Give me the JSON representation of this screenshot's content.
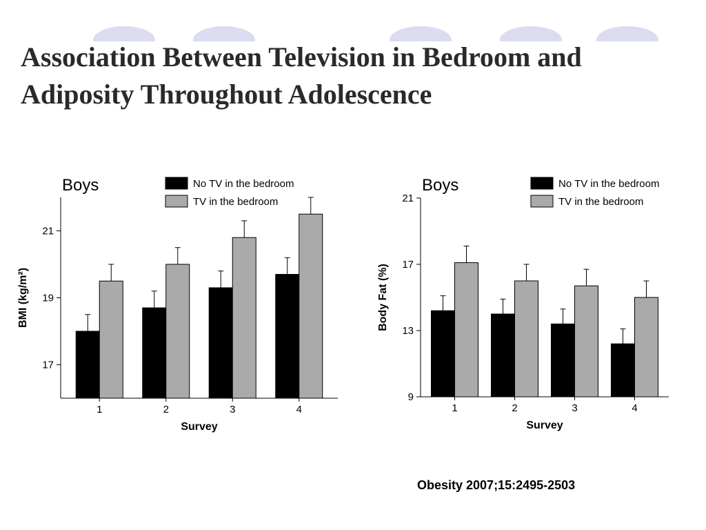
{
  "slide": {
    "title_line1": "Association Between Television in Bedroom and",
    "title_line2": "Adiposity Throughout Adolescence",
    "citation": "Obesity 2007;15:2495-2503"
  },
  "colors": {
    "no_tv": "#000000",
    "tv": "#aaaaaa",
    "deco": "#dcdcf0",
    "title": "#2a2a2a"
  },
  "chart_data": [
    {
      "type": "bar",
      "title": "Boys",
      "xlabel": "Survey",
      "ylabel": "BMI (kg/m²)",
      "categories": [
        "1",
        "2",
        "3",
        "4"
      ],
      "ylim": [
        16,
        22
      ],
      "yticks": [
        17,
        19,
        21
      ],
      "grid": false,
      "legend_position": "top-right",
      "series": [
        {
          "name": "No TV in the bedroom",
          "values": [
            18.0,
            18.7,
            19.3,
            19.7
          ],
          "error": [
            0.5,
            0.5,
            0.5,
            0.5
          ]
        },
        {
          "name": "TV in the bedroom",
          "values": [
            19.5,
            20.0,
            20.8,
            21.5
          ],
          "error": [
            0.5,
            0.5,
            0.5,
            0.5
          ]
        }
      ]
    },
    {
      "type": "bar",
      "title": "Boys",
      "xlabel": "Survey",
      "ylabel": "Body Fat (%)",
      "categories": [
        "1",
        "2",
        "3",
        "4"
      ],
      "ylim": [
        9,
        21
      ],
      "yticks": [
        9,
        13,
        17,
        21
      ],
      "grid": false,
      "legend_position": "top-right",
      "series": [
        {
          "name": "No TV in the bedroom",
          "values": [
            14.2,
            14.0,
            13.4,
            12.2
          ],
          "error": [
            0.9,
            0.9,
            0.9,
            0.9
          ]
        },
        {
          "name": "TV in the bedroom",
          "values": [
            17.1,
            16.0,
            15.7,
            15.0
          ],
          "error": [
            1.0,
            1.0,
            1.0,
            1.0
          ]
        }
      ]
    }
  ]
}
